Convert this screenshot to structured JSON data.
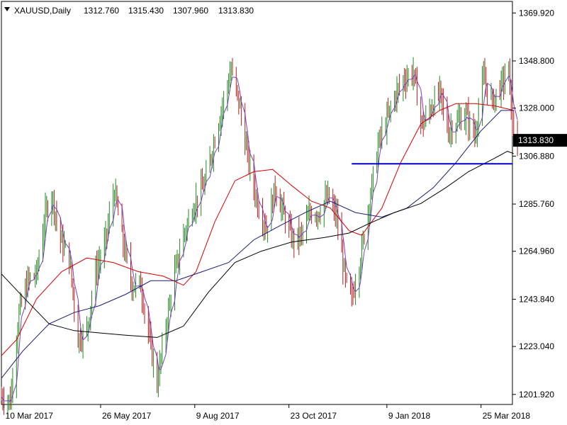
{
  "header": {
    "symbol": "XAUUSD,Daily",
    "open": "1312.760",
    "high": "1315.430",
    "low": "1307.960",
    "close": "1313.830"
  },
  "price_label": "1313.830",
  "colors": {
    "bull_candle": "#228b22",
    "bear_candle": "#b22222",
    "ma_fast": "#7b3fbf",
    "ma_red": "#d40000",
    "ma_navy": "#1a1a7a",
    "ma_black": "#000000",
    "support_line": "#0000cc",
    "axis": "#000000"
  },
  "chart_data": {
    "type": "line",
    "title": "XAUUSD,Daily",
    "y_tick_labels": [
      "1369.920",
      "1348.800",
      "1328.000",
      "1306.880",
      "1285.760",
      "1264.960",
      "1243.840",
      "1223.040",
      "1201.920"
    ],
    "y_ticks": [
      1369.92,
      1348.8,
      1328.0,
      1306.88,
      1285.76,
      1264.96,
      1243.84,
      1223.04,
      1201.92
    ],
    "x_tick_labels": [
      "10 Mar 2017",
      "26 May 2017",
      "9 Aug 2017",
      "23 Oct 2017",
      "9 Jan 2018",
      "25 Mar 2018"
    ],
    "x_tick_dates": [
      "2017-03-10",
      "2017-05-26",
      "2017-08-09",
      "2017-10-23",
      "2018-01-09",
      "2018-03-25"
    ],
    "ylim": [
      1197.5,
      1375.0
    ],
    "xlim": [
      "2017-03-08",
      "2018-04-19"
    ],
    "support_level": 1303.5,
    "support_start": "2017-12-12",
    "last_price": 1313.83,
    "price_path": [
      [
        "2017-03-08",
        1201
      ],
      [
        "2017-03-15",
        1199
      ],
      [
        "2017-03-22",
        1238
      ],
      [
        "2017-03-29",
        1252
      ],
      [
        "2017-04-05",
        1255
      ],
      [
        "2017-04-12",
        1281
      ],
      [
        "2017-04-17",
        1290
      ],
      [
        "2017-04-24",
        1270
      ],
      [
        "2017-05-01",
        1262
      ],
      [
        "2017-05-08",
        1226
      ],
      [
        "2017-05-15",
        1230
      ],
      [
        "2017-05-22",
        1256
      ],
      [
        "2017-05-29",
        1267
      ],
      [
        "2017-06-06",
        1292
      ],
      [
        "2017-06-13",
        1268
      ],
      [
        "2017-06-20",
        1250
      ],
      [
        "2017-06-27",
        1250
      ],
      [
        "2017-07-05",
        1222
      ],
      [
        "2017-07-10",
        1207
      ],
      [
        "2017-07-17",
        1232
      ],
      [
        "2017-07-24",
        1255
      ],
      [
        "2017-07-31",
        1272
      ],
      [
        "2017-08-08",
        1285
      ],
      [
        "2017-08-17",
        1295
      ],
      [
        "2017-08-28",
        1322
      ],
      [
        "2017-09-07",
        1345
      ],
      [
        "2017-09-14",
        1328
      ],
      [
        "2017-09-21",
        1304
      ],
      [
        "2017-09-28",
        1286
      ],
      [
        "2017-10-05",
        1275
      ],
      [
        "2017-10-12",
        1293
      ],
      [
        "2017-10-19",
        1281
      ],
      [
        "2017-10-26",
        1270
      ],
      [
        "2017-11-02",
        1272
      ],
      [
        "2017-11-09",
        1282
      ],
      [
        "2017-11-16",
        1282
      ],
      [
        "2017-11-23",
        1289
      ],
      [
        "2017-11-30",
        1280
      ],
      [
        "2017-12-07",
        1252
      ],
      [
        "2017-12-12",
        1244
      ],
      [
        "2017-12-19",
        1262
      ],
      [
        "2017-12-26",
        1287
      ],
      [
        "2018-01-02",
        1312
      ],
      [
        "2018-01-09",
        1323
      ],
      [
        "2018-01-16",
        1334
      ],
      [
        "2018-01-23",
        1341
      ],
      [
        "2018-01-30",
        1344
      ],
      [
        "2018-02-06",
        1320
      ],
      [
        "2018-02-13",
        1328
      ],
      [
        "2018-02-20",
        1335
      ],
      [
        "2018-02-27",
        1318
      ],
      [
        "2018-03-06",
        1322
      ],
      [
        "2018-03-13",
        1325
      ],
      [
        "2018-03-20",
        1316
      ],
      [
        "2018-03-27",
        1341
      ],
      [
        "2018-04-03",
        1331
      ],
      [
        "2018-04-10",
        1338
      ],
      [
        "2018-04-16",
        1345
      ],
      [
        "2018-04-19",
        1319
      ],
      [
        "2018-04-23",
        1314
      ]
    ],
    "ma_red": [
      [
        "2017-03-08",
        1219
      ],
      [
        "2017-03-20",
        1226
      ],
      [
        "2017-04-05",
        1244
      ],
      [
        "2017-04-25",
        1256
      ],
      [
        "2017-05-15",
        1262
      ],
      [
        "2017-06-05",
        1260
      ],
      [
        "2017-06-25",
        1256
      ],
      [
        "2017-07-15",
        1254
      ],
      [
        "2017-07-31",
        1250
      ],
      [
        "2017-08-10",
        1256
      ],
      [
        "2017-08-25",
        1278
      ],
      [
        "2017-09-10",
        1296
      ],
      [
        "2017-09-25",
        1300
      ],
      [
        "2017-10-10",
        1301
      ],
      [
        "2017-10-25",
        1294
      ],
      [
        "2017-11-10",
        1287
      ],
      [
        "2017-11-25",
        1284
      ],
      [
        "2017-12-10",
        1274
      ],
      [
        "2017-12-20",
        1272
      ],
      [
        "2018-01-05",
        1284
      ],
      [
        "2018-01-20",
        1304
      ],
      [
        "2018-02-05",
        1321
      ],
      [
        "2018-02-20",
        1327
      ],
      [
        "2018-03-05",
        1330
      ],
      [
        "2018-03-20",
        1330
      ],
      [
        "2018-04-05",
        1329
      ],
      [
        "2018-04-20",
        1327
      ]
    ],
    "ma_navy": [
      [
        "2017-03-08",
        1209
      ],
      [
        "2017-03-25",
        1221
      ],
      [
        "2017-04-15",
        1233
      ],
      [
        "2017-05-05",
        1238
      ],
      [
        "2017-05-25",
        1241
      ],
      [
        "2017-06-15",
        1246
      ],
      [
        "2017-07-05",
        1252
      ],
      [
        "2017-07-25",
        1252
      ],
      [
        "2017-08-15",
        1256
      ],
      [
        "2017-09-05",
        1260
      ],
      [
        "2017-09-25",
        1270
      ],
      [
        "2017-10-15",
        1276
      ],
      [
        "2017-11-05",
        1282
      ],
      [
        "2017-11-25",
        1287
      ],
      [
        "2017-12-15",
        1282
      ],
      [
        "2018-01-05",
        1280
      ],
      [
        "2018-01-25",
        1284
      ],
      [
        "2018-02-15",
        1293
      ],
      [
        "2018-03-05",
        1304
      ],
      [
        "2018-03-25",
        1318
      ],
      [
        "2018-04-10",
        1327
      ],
      [
        "2018-04-20",
        1327
      ]
    ],
    "ma_black": [
      [
        "2017-03-08",
        1255
      ],
      [
        "2017-03-25",
        1245
      ],
      [
        "2017-04-15",
        1233
      ],
      [
        "2017-05-05",
        1230
      ],
      [
        "2017-05-25",
        1229
      ],
      [
        "2017-06-15",
        1228
      ],
      [
        "2017-07-10",
        1227
      ],
      [
        "2017-07-31",
        1232
      ],
      [
        "2017-08-20",
        1247
      ],
      [
        "2017-09-10",
        1260
      ],
      [
        "2017-10-01",
        1265
      ],
      [
        "2017-10-25",
        1269
      ],
      [
        "2017-11-20",
        1271
      ],
      [
        "2017-12-10",
        1273
      ],
      [
        "2017-12-25",
        1277
      ],
      [
        "2018-01-15",
        1282
      ],
      [
        "2018-02-05",
        1286
      ],
      [
        "2018-02-25",
        1293
      ],
      [
        "2018-03-15",
        1300
      ],
      [
        "2018-04-05",
        1306
      ],
      [
        "2018-04-15",
        1309
      ],
      [
        "2018-04-20",
        1308
      ]
    ]
  }
}
